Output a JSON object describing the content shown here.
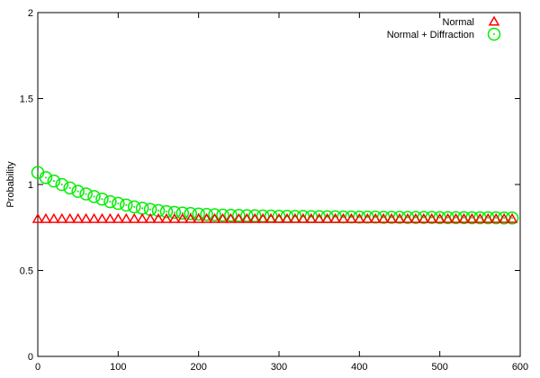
{
  "chart_data": {
    "type": "scatter",
    "title": "",
    "xlabel": "",
    "ylabel": "Probability",
    "xlim": [
      0,
      600
    ],
    "ylim": [
      0,
      2
    ],
    "xticks": [
      0,
      100,
      200,
      300,
      400,
      500,
      600
    ],
    "yticks": [
      0,
      0.5,
      1,
      1.5,
      2
    ],
    "xtick_labels": [
      "0",
      "100",
      "200",
      "300",
      "400",
      "500",
      "600"
    ],
    "ytick_labels": [
      "0",
      "0.5",
      "1",
      "1.5",
      "2"
    ],
    "grid": false,
    "legend_position": "top-right",
    "series": [
      {
        "name": "Normal",
        "marker": "triangle",
        "color": "#ff0000",
        "x": [
          0,
          10,
          20,
          30,
          40,
          50,
          60,
          70,
          80,
          90,
          100,
          110,
          120,
          130,
          140,
          150,
          160,
          170,
          180,
          190,
          200,
          210,
          220,
          230,
          240,
          250,
          260,
          270,
          280,
          290,
          300,
          310,
          320,
          330,
          340,
          350,
          360,
          370,
          380,
          390,
          400,
          410,
          420,
          430,
          440,
          450,
          460,
          470,
          480,
          490,
          500,
          510,
          520,
          530,
          540,
          550,
          560,
          570,
          580,
          590
        ],
        "y": [
          0.8,
          0.8,
          0.8,
          0.8,
          0.8,
          0.8,
          0.8,
          0.8,
          0.8,
          0.8,
          0.8,
          0.8,
          0.8,
          0.8,
          0.8,
          0.8,
          0.8,
          0.8,
          0.8,
          0.8,
          0.8,
          0.8,
          0.8,
          0.8,
          0.8,
          0.8,
          0.8,
          0.8,
          0.8,
          0.8,
          0.8,
          0.8,
          0.8,
          0.8,
          0.8,
          0.8,
          0.8,
          0.8,
          0.8,
          0.8,
          0.8,
          0.8,
          0.8,
          0.8,
          0.8,
          0.8,
          0.8,
          0.8,
          0.8,
          0.8,
          0.8,
          0.8,
          0.8,
          0.8,
          0.8,
          0.8,
          0.8,
          0.8,
          0.8,
          0.8
        ]
      },
      {
        "name": "Normal + Diffraction",
        "marker": "circle-dot",
        "color": "#00ee00",
        "x": [
          0,
          10,
          20,
          30,
          40,
          50,
          60,
          70,
          80,
          90,
          100,
          110,
          120,
          130,
          140,
          150,
          160,
          170,
          180,
          190,
          200,
          210,
          220,
          230,
          240,
          250,
          260,
          270,
          280,
          290,
          300,
          310,
          320,
          330,
          340,
          350,
          360,
          370,
          380,
          390,
          400,
          410,
          420,
          430,
          440,
          450,
          460,
          470,
          480,
          490,
          500,
          510,
          520,
          530,
          540,
          550,
          560,
          570,
          580,
          590
        ],
        "y": [
          1.07,
          1.04,
          1.02,
          1.0,
          0.98,
          0.96,
          0.945,
          0.93,
          0.915,
          0.9,
          0.89,
          0.88,
          0.87,
          0.862,
          0.855,
          0.848,
          0.842,
          0.838,
          0.834,
          0.831,
          0.828,
          0.826,
          0.824,
          0.822,
          0.821,
          0.82,
          0.819,
          0.818,
          0.817,
          0.816,
          0.815,
          0.815,
          0.814,
          0.814,
          0.813,
          0.813,
          0.812,
          0.812,
          0.811,
          0.811,
          0.81,
          0.81,
          0.81,
          0.809,
          0.809,
          0.809,
          0.808,
          0.808,
          0.808,
          0.808,
          0.807,
          0.807,
          0.807,
          0.807,
          0.806,
          0.806,
          0.806,
          0.806,
          0.805,
          0.805
        ]
      }
    ]
  }
}
